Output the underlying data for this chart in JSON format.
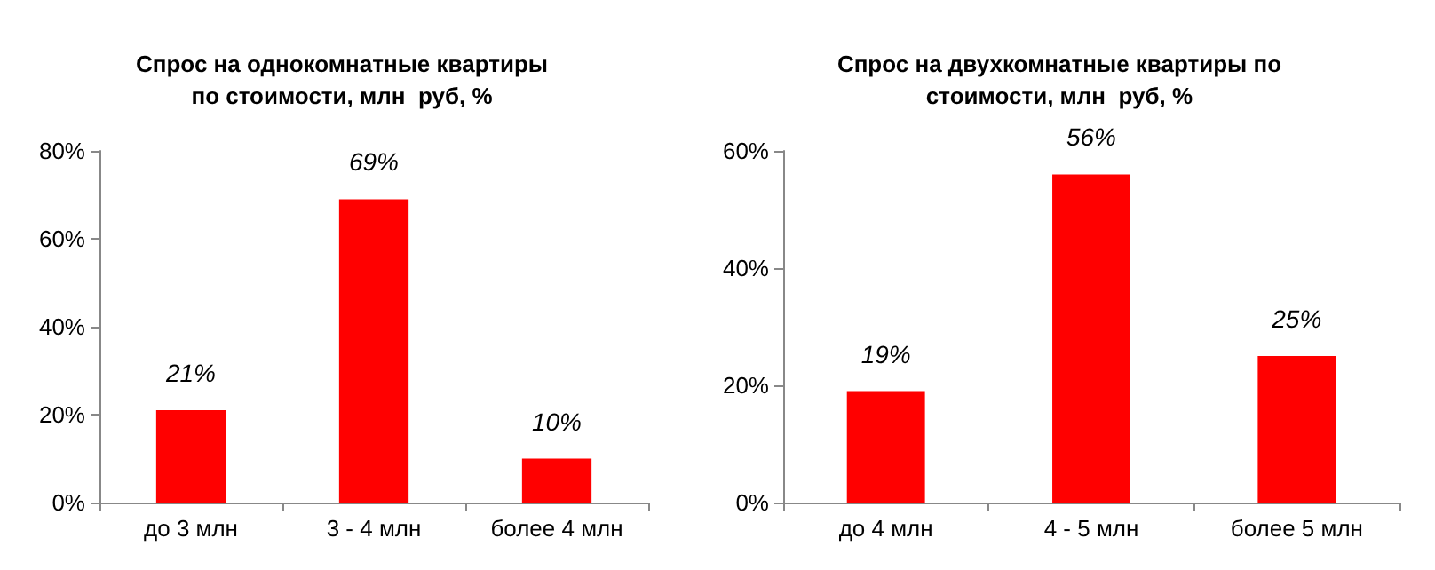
{
  "chart_data": [
    {
      "type": "bar",
      "title": "Спрос на однокомнатные квартиры\nпо стоимости, млн  руб, %",
      "categories": [
        "до 3 млн",
        "3 - 4 млн",
        "более 4 млн"
      ],
      "values": [
        21,
        69,
        10
      ],
      "value_labels": [
        "21%",
        "69%",
        "10%"
      ],
      "color": "#ff0000",
      "ylim": [
        0,
        80
      ],
      "yticks": [
        {
          "value": 0,
          "label": "0%"
        },
        {
          "value": 20,
          "label": "20%"
        },
        {
          "value": 40,
          "label": "40%"
        },
        {
          "value": 60,
          "label": "60%"
        },
        {
          "value": 80,
          "label": "80%"
        }
      ]
    },
    {
      "type": "bar",
      "title": "Спрос на двухкомнатные квартиры по\nстоимости, млн  руб, %",
      "categories": [
        "до 4 млн",
        "4 - 5 млн",
        "более 5 млн"
      ],
      "values": [
        19,
        56,
        25
      ],
      "value_labels": [
        "19%",
        "56%",
        "25%"
      ],
      "color": "#ff0000",
      "ylim": [
        0,
        60
      ],
      "yticks": [
        {
          "value": 0,
          "label": "0%"
        },
        {
          "value": 20,
          "label": "20%"
        },
        {
          "value": 40,
          "label": "40%"
        },
        {
          "value": 60,
          "label": "60%"
        }
      ]
    }
  ]
}
